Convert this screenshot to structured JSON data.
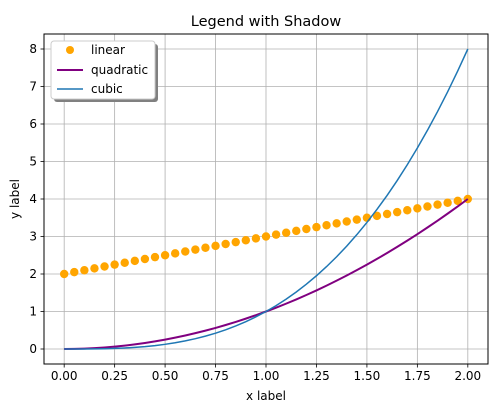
{
  "chart_data": {
    "type": "line",
    "title": "Legend with Shadow",
    "xlabel": "x label",
    "ylabel": "y label",
    "xlim": [
      -0.1,
      2.1
    ],
    "ylim": [
      -0.4,
      8.4
    ],
    "grid": true,
    "legend_position": "top-left",
    "legend_shadow": true,
    "x_ticks": [
      {
        "value": 0.0,
        "label": "0.00"
      },
      {
        "value": 0.25,
        "label": "0.25"
      },
      {
        "value": 0.5,
        "label": "0.50"
      },
      {
        "value": 0.75,
        "label": "0.75"
      },
      {
        "value": 1.0,
        "label": "1.00"
      },
      {
        "value": 1.25,
        "label": "1.25"
      },
      {
        "value": 1.5,
        "label": "1.50"
      },
      {
        "value": 1.75,
        "label": "1.75"
      },
      {
        "value": 2.0,
        "label": "2.00"
      }
    ],
    "y_ticks": [
      {
        "value": 0,
        "label": "0"
      },
      {
        "value": 1,
        "label": "1"
      },
      {
        "value": 2,
        "label": "2"
      },
      {
        "value": 3,
        "label": "3"
      },
      {
        "value": 4,
        "label": "4"
      },
      {
        "value": 5,
        "label": "5"
      },
      {
        "value": 6,
        "label": "6"
      },
      {
        "value": 7,
        "label": "7"
      },
      {
        "value": 8,
        "label": "8"
      }
    ],
    "x": [
      0,
      0.05,
      0.1,
      0.15,
      0.2,
      0.25,
      0.3,
      0.35,
      0.4,
      0.45,
      0.5,
      0.55,
      0.6,
      0.65,
      0.7,
      0.75,
      0.8,
      0.85,
      0.9,
      0.95,
      1.0,
      1.05,
      1.1,
      1.15,
      1.2,
      1.25,
      1.3,
      1.35,
      1.4,
      1.45,
      1.5,
      1.55,
      1.6,
      1.65,
      1.7,
      1.75,
      1.8,
      1.85,
      1.9,
      1.95,
      2.0
    ],
    "series": [
      {
        "name": "linear",
        "style": "markers",
        "color": "#ffa500",
        "values": [
          2.0,
          2.05,
          2.1,
          2.15,
          2.2,
          2.25,
          2.3,
          2.35,
          2.4,
          2.45,
          2.5,
          2.55,
          2.6,
          2.65,
          2.7,
          2.75,
          2.8,
          2.85,
          2.9,
          2.95,
          3.0,
          3.05,
          3.1,
          3.15,
          3.2,
          3.25,
          3.3,
          3.35,
          3.4,
          3.45,
          3.5,
          3.55,
          3.6,
          3.65,
          3.7,
          3.75,
          3.8,
          3.85,
          3.9,
          3.95,
          4.0
        ]
      },
      {
        "name": "quadratic",
        "style": "line",
        "color": "#800080",
        "values": [
          0.0,
          0.0025,
          0.01,
          0.0225,
          0.04,
          0.0625,
          0.09,
          0.1225,
          0.16,
          0.2025,
          0.25,
          0.3025,
          0.36,
          0.4225,
          0.49,
          0.5625,
          0.64,
          0.7225,
          0.81,
          0.9025,
          1.0,
          1.1025,
          1.21,
          1.3225,
          1.44,
          1.5625,
          1.69,
          1.8225,
          1.96,
          2.1025,
          2.25,
          2.4025,
          2.56,
          2.7225,
          2.89,
          3.0625,
          3.24,
          3.4225,
          3.61,
          3.8025,
          4.0
        ]
      },
      {
        "name": "cubic",
        "style": "line",
        "color": "#1f77b4",
        "values": [
          0.0,
          0.0001,
          0.001,
          0.0034,
          0.008,
          0.0156,
          0.027,
          0.0429,
          0.064,
          0.0911,
          0.125,
          0.1664,
          0.216,
          0.2746,
          0.343,
          0.4219,
          0.512,
          0.6141,
          0.729,
          0.8574,
          1.0,
          1.1576,
          1.331,
          1.5209,
          1.728,
          1.9531,
          2.197,
          2.4604,
          2.744,
          3.0486,
          3.375,
          3.7239,
          4.096,
          4.4921,
          4.913,
          5.3594,
          5.832,
          6.3316,
          6.859,
          7.4149,
          8.0
        ]
      }
    ]
  }
}
